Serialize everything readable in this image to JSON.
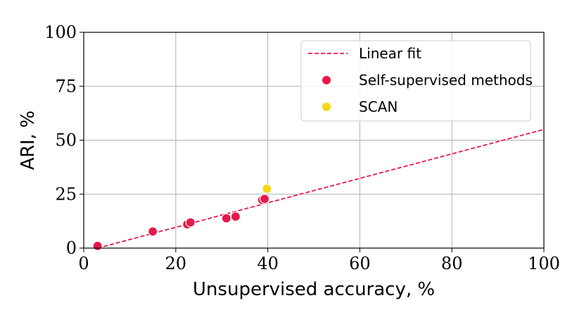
{
  "chart_data": {
    "type": "scatter",
    "xlabel": "Unsupervised accuracy, %",
    "ylabel": "ARI, %",
    "xlim": [
      0,
      100
    ],
    "ylim": [
      0,
      100
    ],
    "xticks": [
      "0",
      "20",
      "40",
      "60",
      "80",
      "100"
    ],
    "yticks": [
      "0",
      "25",
      "50",
      "75",
      "100"
    ],
    "grid": true,
    "legend_placement": "top-right",
    "series": [
      {
        "name": "Linear fit",
        "kind": "line",
        "style": "dashed",
        "color": "#e8174b",
        "x": [
          3,
          100
        ],
        "y": [
          0,
          55
        ]
      },
      {
        "name": "Self-supervised methods",
        "kind": "scatter",
        "color": "#e8174b",
        "x": [
          3.0,
          15.0,
          22.5,
          23.2,
          31.0,
          33.0,
          38.8,
          39.3
        ],
        "y": [
          1.0,
          7.7,
          11.0,
          11.9,
          13.8,
          14.6,
          22.3,
          22.8
        ]
      },
      {
        "name": "SCAN",
        "kind": "scatter",
        "color": "#f7d716",
        "x": [
          39.8
        ],
        "y": [
          27.5
        ]
      }
    ]
  }
}
